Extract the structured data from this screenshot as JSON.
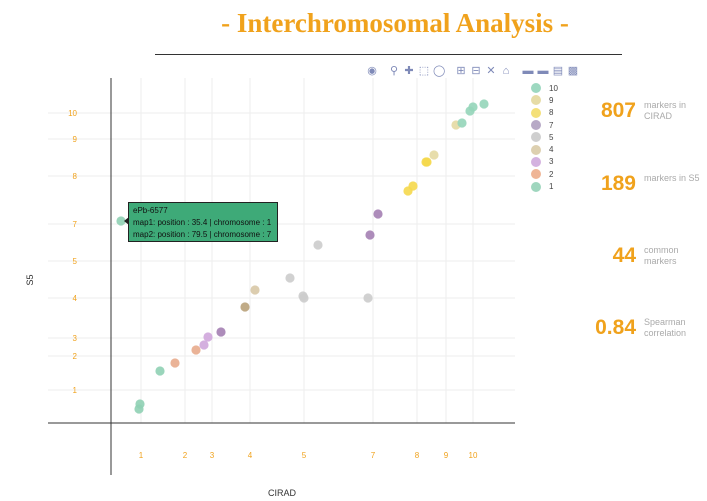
{
  "title": "- Interchromosomal Analysis -",
  "toolbar": {
    "icons": [
      "camera-icon",
      "zoom-icon",
      "pan-icon",
      "box-select-icon",
      "lasso-select-icon",
      "zoom-in-icon",
      "zoom-out-icon",
      "autoscale-icon",
      "reset-axes-icon",
      "spike-lines-icon",
      "hover-closest-icon",
      "hover-compare-icon",
      "plotly-logo-icon"
    ]
  },
  "stats": [
    {
      "value": "807",
      "label": "markers in CIRAD"
    },
    {
      "value": "189",
      "label": "markers in S5"
    },
    {
      "value": "44",
      "label": "common markers"
    },
    {
      "value": "0.84",
      "label": "Spearman correlation"
    }
  ],
  "hover": {
    "marker": "ePb-6577",
    "line1": "map1: position : 35.4 | chromosome : 1",
    "line2": "map2: position : 79.5 | chromosome : 7",
    "color": "#3eaa78"
  },
  "chart_data": {
    "type": "scatter",
    "xlabel": "CIRAD",
    "ylabel": "S5",
    "x_ticks": [
      {
        "label": "1",
        "px": 141
      },
      {
        "label": "2",
        "px": 185
      },
      {
        "label": "3",
        "px": 212
      },
      {
        "label": "4",
        "px": 250
      },
      {
        "label": "5",
        "px": 304
      },
      {
        "label": "7",
        "px": 373
      },
      {
        "label": "8",
        "px": 417
      },
      {
        "label": "9",
        "px": 446
      },
      {
        "label": "10",
        "px": 473
      }
    ],
    "y_ticks": [
      {
        "label": "10",
        "px": 113
      },
      {
        "label": "9",
        "px": 139
      },
      {
        "label": "8",
        "px": 176
      },
      {
        "label": "7",
        "px": 224
      },
      {
        "label": "5",
        "px": 261
      },
      {
        "label": "4",
        "px": 298
      },
      {
        "label": "3",
        "px": 338
      },
      {
        "label": "2",
        "px": 356
      },
      {
        "label": "1",
        "px": 390
      }
    ],
    "legend": [
      {
        "name": "10",
        "color": "#9dd8c0"
      },
      {
        "name": "9",
        "color": "#e6dca6"
      },
      {
        "name": "8",
        "color": "#f4e078"
      },
      {
        "name": "7",
        "color": "#b7a9c6"
      },
      {
        "name": "5",
        "color": "#cfcfcf"
      },
      {
        "name": "4",
        "color": "#ddd0b0"
      },
      {
        "name": "3",
        "color": "#d4b2e0"
      },
      {
        "name": "2",
        "color": "#efb596"
      },
      {
        "name": "1",
        "color": "#9fd6be"
      }
    ],
    "series": [
      {
        "name": "1",
        "color": "#8fd0b4",
        "points": [
          [
            139,
            409
          ],
          [
            140,
            404
          ],
          [
            160,
            371
          ],
          [
            121,
            221
          ]
        ]
      },
      {
        "name": "2",
        "color": "#e8ab8c",
        "points": [
          [
            175,
            363
          ],
          [
            196,
            350
          ]
        ]
      },
      {
        "name": "3",
        "color": "#cfa6dc",
        "points": [
          [
            204,
            345
          ],
          [
            208,
            337
          ]
        ]
      },
      {
        "name": "7",
        "color": "#a47fb2",
        "points": [
          [
            221,
            332
          ],
          [
            370,
            235
          ],
          [
            378,
            214
          ]
        ]
      },
      {
        "name": "4",
        "color": "#b9a27a",
        "points": [
          [
            245,
            307
          ]
        ]
      },
      {
        "name": "4",
        "color": "#d8c8a6",
        "points": [
          [
            255,
            290
          ]
        ]
      },
      {
        "name": "5",
        "color": "#cccccc",
        "points": [
          [
            290,
            278
          ],
          [
            303,
            296
          ],
          [
            304,
            298
          ],
          [
            318,
            245
          ],
          [
            368,
            298
          ]
        ]
      },
      {
        "name": "8",
        "color": "#f5d84c",
        "points": [
          [
            408,
            191
          ],
          [
            413,
            186
          ],
          [
            426,
            162
          ],
          [
            427,
            162
          ]
        ]
      },
      {
        "name": "9",
        "color": "#e4d9a2",
        "points": [
          [
            434,
            155
          ],
          [
            456,
            125
          ]
        ]
      },
      {
        "name": "10",
        "color": "#95d5b9",
        "points": [
          [
            462,
            123
          ],
          [
            470,
            111
          ],
          [
            473,
            107
          ],
          [
            484,
            104
          ]
        ]
      }
    ]
  }
}
